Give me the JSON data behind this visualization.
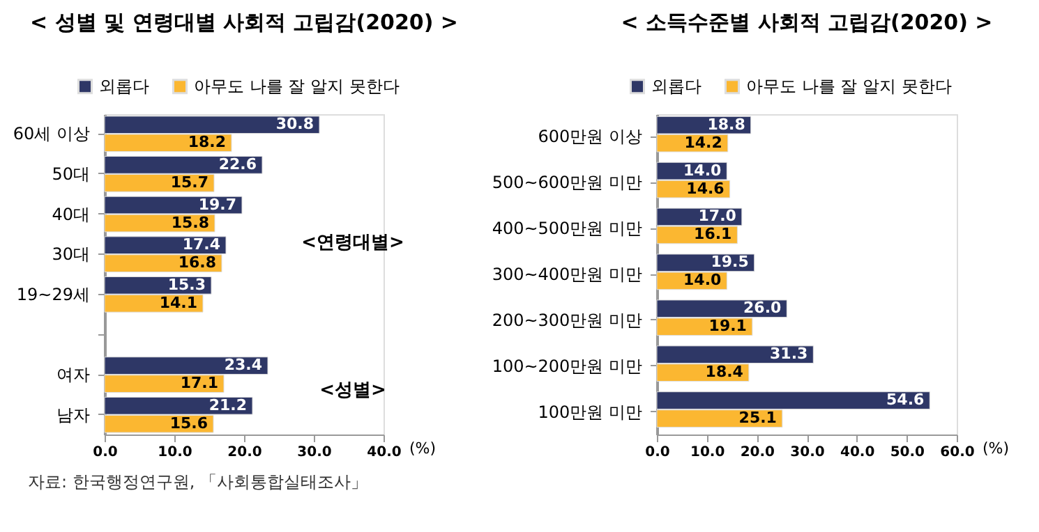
{
  "chart_data": [
    {
      "type": "bar",
      "orientation": "horizontal",
      "title": "< 성별 및 연령대별 사회적 고립감(2020) >",
      "xlabel": "(%)",
      "categories": [
        "60세 이상",
        "50대",
        "40대",
        "30대",
        "19~29세",
        null,
        "여자",
        "남자"
      ],
      "series": [
        {
          "name": "외롭다",
          "color": "#2e3766",
          "values": [
            30.8,
            22.6,
            19.7,
            17.4,
            15.3,
            null,
            23.4,
            21.2
          ],
          "value_labels": [
            "30.8",
            "22.6",
            "19.7",
            "17.4",
            "15.3",
            null,
            "23.4",
            "21.2"
          ]
        },
        {
          "name": "아무도 나를 잘 알지 못한다",
          "color": "#fbb731",
          "values": [
            18.2,
            15.7,
            15.8,
            16.8,
            14.1,
            null,
            17.1,
            15.6
          ],
          "value_labels": [
            "18.2",
            "15.7",
            "15.8",
            "16.8",
            "14.1",
            null,
            "17.1",
            "15.6"
          ]
        }
      ],
      "xlim": [
        0,
        40
      ],
      "xticks": [
        {
          "value": 0,
          "label": "0.0"
        },
        {
          "value": 10,
          "label": "10.0"
        },
        {
          "value": 20,
          "label": "20.0"
        },
        {
          "value": 30,
          "label": "30.0"
        },
        {
          "value": 40,
          "label": "40.0"
        }
      ],
      "legend": "top left",
      "grid": false,
      "annotations": [
        "<연령대별>",
        "<성별>",
        "자료: 한국행정연구원, 「사회통합실태조사」"
      ]
    },
    {
      "type": "bar",
      "orientation": "horizontal",
      "title": "< 소득수준별 사회적 고립감(2020) >",
      "xlabel": "(%)",
      "categories": [
        "600만원 이상",
        "500~600만원 미만",
        "400~500만원 미만",
        "300~400만원 미만",
        "200~300만원 미만",
        "100~200만원 미만",
        "100만원 미만"
      ],
      "series": [
        {
          "name": "외롭다",
          "color": "#2e3766",
          "values": [
            18.8,
            14.0,
            17.0,
            19.5,
            26.0,
            31.3,
            54.6
          ],
          "value_labels": [
            "18.8",
            "14.0",
            "17.0",
            "19.5",
            "26.0",
            "31.3",
            "54.6"
          ]
        },
        {
          "name": "아무도 나를 잘 알지 못한다",
          "color": "#fbb731",
          "values": [
            14.2,
            14.6,
            16.1,
            14.0,
            19.1,
            18.4,
            25.1
          ],
          "value_labels": [
            "14.2",
            "14.6",
            "16.1",
            "14.0",
            "19.1",
            "18.4",
            "25.1"
          ]
        }
      ],
      "xlim": [
        0,
        60
      ],
      "xticks": [
        {
          "value": 0,
          "label": "0.0"
        },
        {
          "value": 10,
          "label": "10.0"
        },
        {
          "value": 20,
          "label": "20.0"
        },
        {
          "value": 30,
          "label": "30.0"
        },
        {
          "value": 40,
          "label": "40.0"
        },
        {
          "value": 50,
          "label": "50.0"
        },
        {
          "value": 60,
          "label": "60.0"
        }
      ],
      "legend": "top left",
      "grid": false
    }
  ]
}
